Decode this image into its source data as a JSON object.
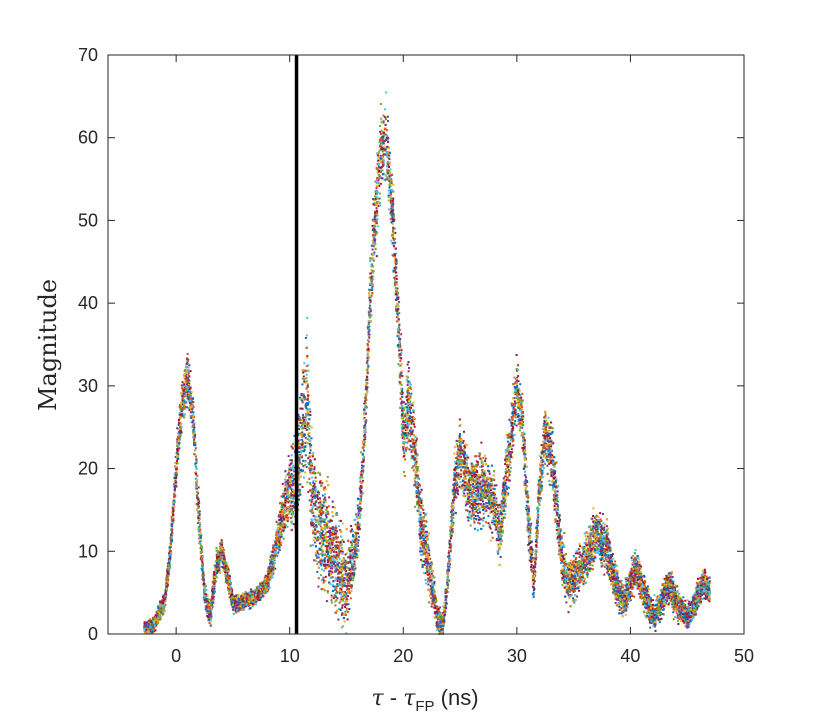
{
  "chart_data": {
    "type": "scatter",
    "title": "",
    "xlabel": {
      "tau": "τ",
      "minus": " - ",
      "tau2": "τ",
      "sub": "FP",
      "unit": " (ns)"
    },
    "ylabel": "Magnitude",
    "xlim": [
      -6,
      50
    ],
    "ylim": [
      0,
      70
    ],
    "xticks": [
      0,
      10,
      20,
      30,
      40,
      50
    ],
    "yticks": [
      0,
      10,
      20,
      30,
      40,
      50,
      60,
      70
    ],
    "xtick_labels": [
      "0",
      "10",
      "20",
      "30",
      "40",
      "50"
    ],
    "ytick_labels": [
      "0",
      "10",
      "20",
      "30",
      "40",
      "50",
      "60",
      "70"
    ],
    "grid": false,
    "vertical_line": {
      "x": 10.6,
      "color": "#000000"
    },
    "colors": [
      "#0072BD",
      "#D95319",
      "#EDB120",
      "#7E2F8E",
      "#77AC30",
      "#4DBEEE",
      "#A2142F"
    ],
    "envelope": {
      "description": "center magnitude of the scattered cloud at each delay (ns)",
      "x": [
        -2.8,
        -2.0,
        -1.0,
        -0.5,
        0.0,
        0.5,
        1.0,
        1.5,
        2.0,
        2.5,
        3.0,
        3.5,
        4.0,
        4.5,
        5.0,
        5.5,
        6.0,
        7.0,
        8.0,
        9.0,
        10.0,
        10.5,
        11.0,
        11.5,
        12.0,
        13.0,
        14.0,
        15.0,
        16.0,
        16.5,
        17.0,
        17.5,
        18.0,
        18.5,
        19.0,
        19.5,
        20.0,
        20.5,
        21.0,
        21.5,
        22.0,
        22.5,
        23.0,
        23.5,
        24.0,
        24.5,
        25.0,
        25.5,
        26.0,
        27.0,
        28.0,
        28.5,
        29.0,
        29.5,
        30.0,
        30.5,
        31.0,
        31.5,
        32.0,
        32.5,
        33.0,
        33.5,
        34.0,
        34.5,
        35.0,
        36.0,
        37.0,
        38.0,
        38.5,
        39.0,
        39.5,
        40.0,
        40.5,
        41.0,
        41.5,
        42.0,
        42.5,
        43.0,
        43.5,
        44.0,
        44.5,
        45.0,
        45.5,
        46.0,
        46.5,
        47.0
      ],
      "y": [
        0.8,
        1.0,
        4.0,
        10.0,
        20.0,
        28.0,
        31.0,
        26.0,
        14.0,
        5.0,
        2.0,
        8.0,
        10.0,
        7.0,
        4.0,
        3.5,
        4.0,
        4.5,
        6.0,
        12.0,
        18.0,
        17.0,
        24.0,
        28.0,
        16.0,
        12.0,
        9.0,
        6.0,
        12.0,
        22.0,
        38.0,
        50.0,
        58.0,
        60.0,
        52.0,
        40.0,
        24.0,
        28.0,
        22.0,
        14.0,
        10.0,
        6.0,
        2.0,
        1.0,
        8.0,
        18.0,
        22.0,
        19.0,
        17.0,
        18.0,
        16.0,
        12.0,
        18.0,
        24.0,
        30.0,
        26.0,
        14.0,
        6.0,
        18.0,
        24.0,
        22.0,
        16.0,
        9.0,
        6.0,
        7.0,
        9.0,
        12.0,
        10.0,
        7.0,
        5.0,
        4.0,
        6.0,
        8.0,
        6.0,
        4.0,
        2.0,
        3.0,
        5.0,
        6.0,
        4.0,
        3.0,
        2.0,
        3.0,
        5.0,
        6.0,
        5.0
      ],
      "spread": [
        0.6,
        0.7,
        1.0,
        1.5,
        2.0,
        2.5,
        2.5,
        2.5,
        2.0,
        1.5,
        1.2,
        1.5,
        1.5,
        1.2,
        1.0,
        0.8,
        0.8,
        0.8,
        1.0,
        2.0,
        3.5,
        4.5,
        6.0,
        7.0,
        6.0,
        6.0,
        5.0,
        4.0,
        3.0,
        3.0,
        3.5,
        4.0,
        4.0,
        4.0,
        4.0,
        4.0,
        4.0,
        4.0,
        4.0,
        3.5,
        3.0,
        2.5,
        1.5,
        1.0,
        2.0,
        3.0,
        3.5,
        3.5,
        3.5,
        3.5,
        3.0,
        3.0,
        3.0,
        3.5,
        3.0,
        3.0,
        2.5,
        2.0,
        2.5,
        3.0,
        3.0,
        3.0,
        2.5,
        2.5,
        2.5,
        2.5,
        2.5,
        2.5,
        2.0,
        2.0,
        1.8,
        1.8,
        2.0,
        2.0,
        1.8,
        1.5,
        1.5,
        1.8,
        1.8,
        1.8,
        1.5,
        1.3,
        1.3,
        1.5,
        1.5,
        1.5
      ]
    },
    "points_per_ns": 320
  }
}
